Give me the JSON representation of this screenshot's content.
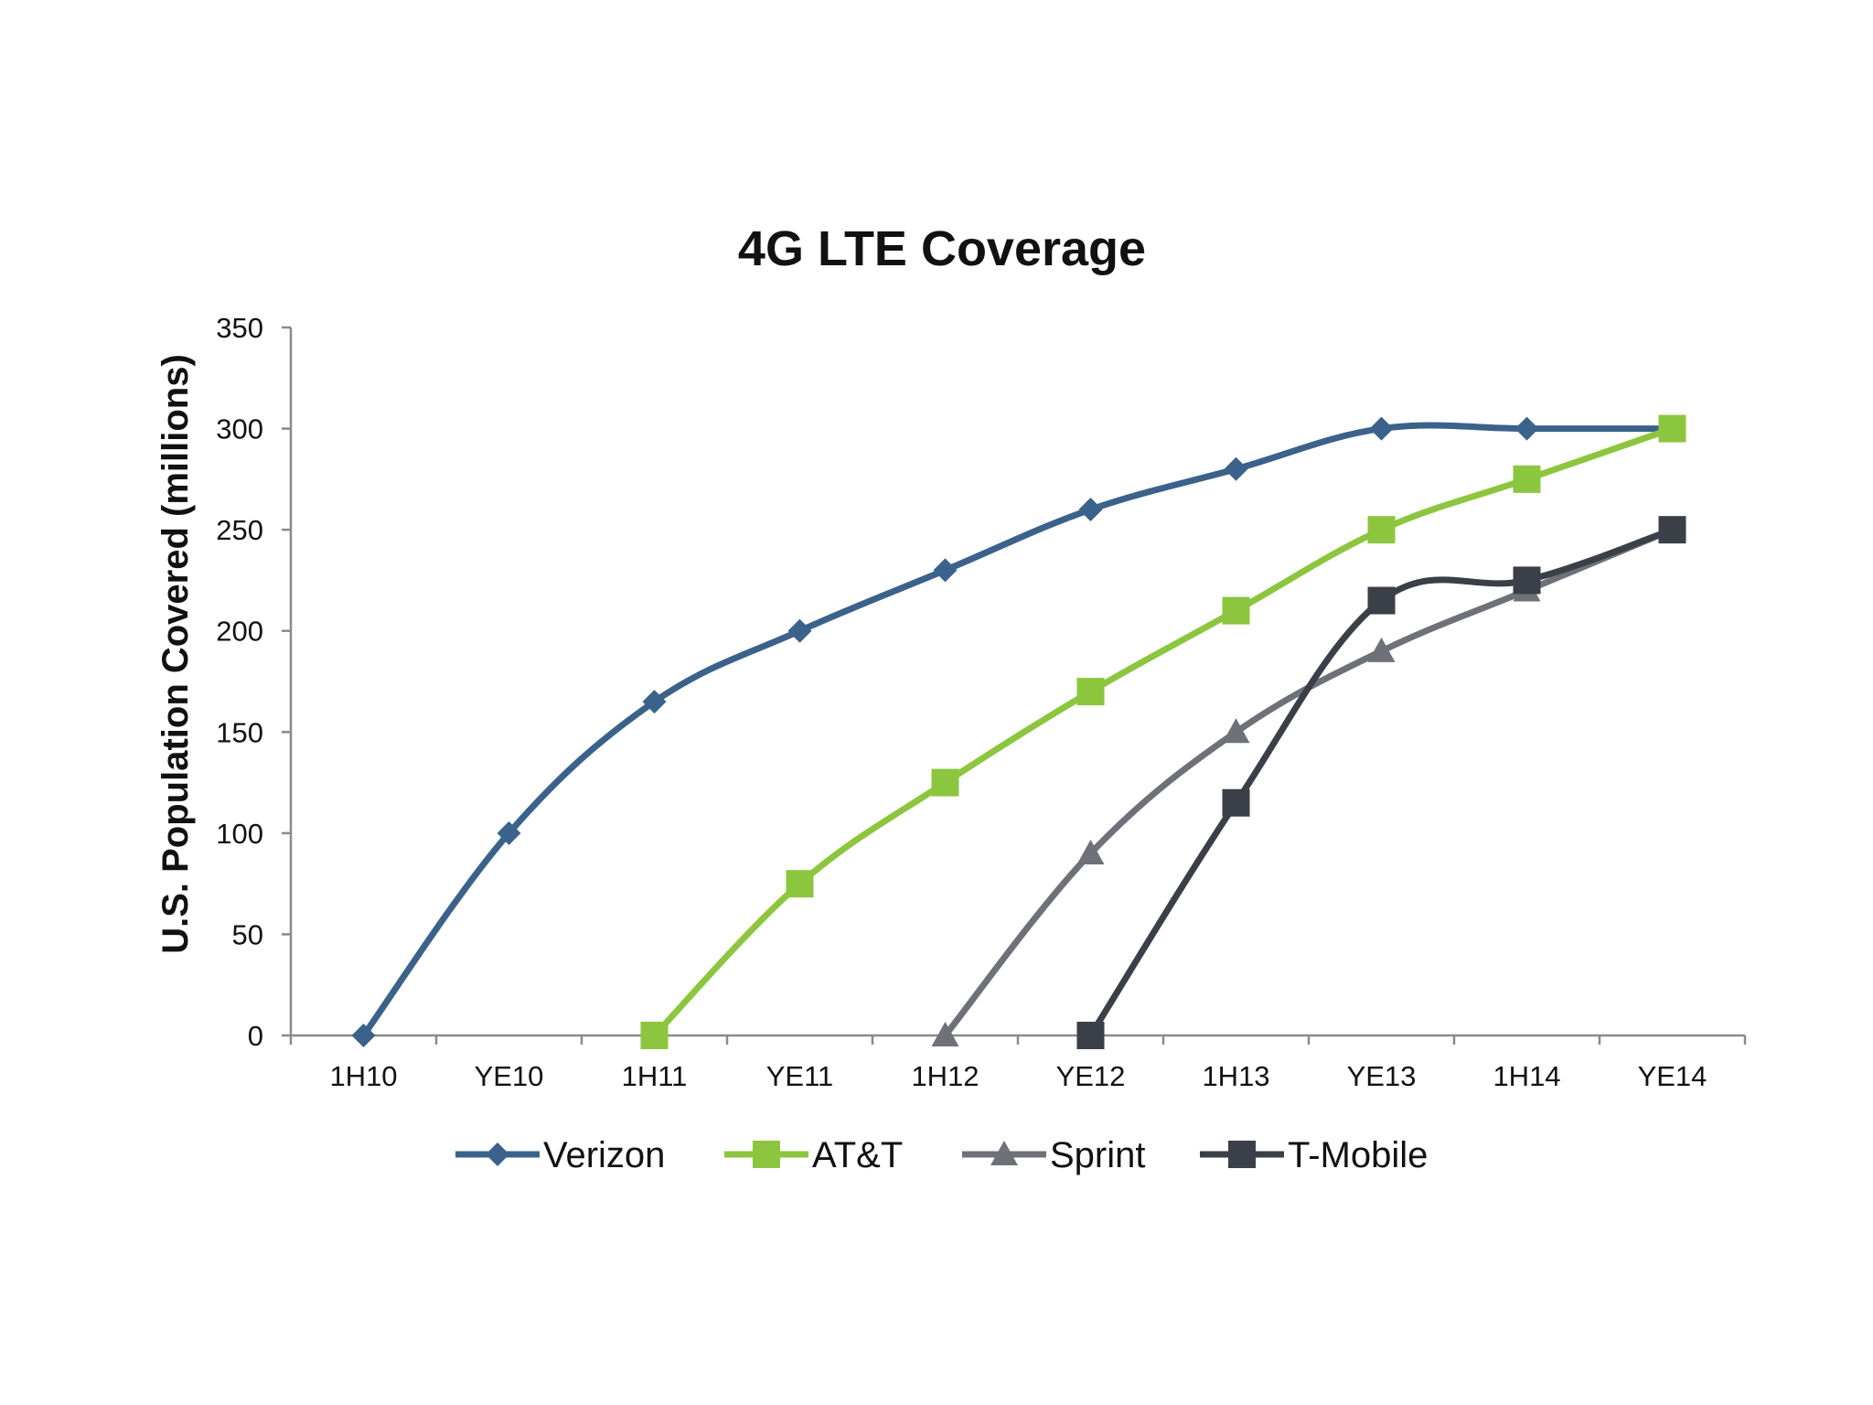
{
  "chart_data": {
    "type": "line",
    "title": "4G LTE Coverage",
    "xlabel": "",
    "ylabel": "U.S. Population Covered (millions)",
    "categories": [
      "1H10",
      "YE10",
      "1H11",
      "YE11",
      "1H12",
      "YE12",
      "1H13",
      "YE13",
      "1H14",
      "YE14"
    ],
    "ylim": [
      0,
      350
    ],
    "yticks": [
      "0",
      "50",
      "100",
      "150",
      "200",
      "250",
      "300",
      "350"
    ],
    "grid": false,
    "legend_position": "bottom",
    "series": [
      {
        "name": "Verizon",
        "marker": "diamond",
        "color": "#3B628A",
        "values": [
          0,
          100,
          165,
          200,
          230,
          260,
          280,
          300,
          300,
          300
        ]
      },
      {
        "name": "AT&T",
        "marker": "square",
        "color": "#8CC63F",
        "values": [
          null,
          null,
          0,
          75,
          125,
          170,
          210,
          250,
          275,
          300
        ]
      },
      {
        "name": "Sprint",
        "marker": "triangle",
        "color": "#6E7278",
        "values": [
          null,
          null,
          null,
          null,
          0,
          90,
          150,
          190,
          220,
          250
        ]
      },
      {
        "name": "T-Mobile",
        "marker": "square",
        "color": "#3A3F48",
        "values": [
          null,
          null,
          null,
          null,
          null,
          0,
          115,
          215,
          225,
          250
        ]
      }
    ]
  }
}
